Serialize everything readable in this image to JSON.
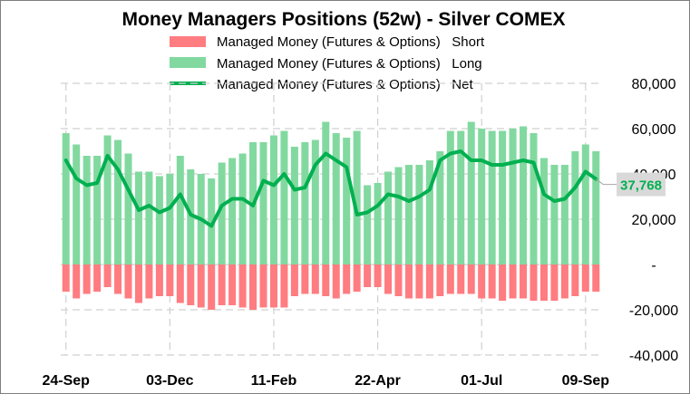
{
  "chart_data": {
    "type": "bar",
    "title": "Money Managers Positions  (52w) - Silver COMEX",
    "legend": [
      {
        "key": "short",
        "label": "Managed Money (Futures & Options)   Short",
        "color": "#ff7c80",
        "kind": "bar"
      },
      {
        "key": "long",
        "label": "Managed Money (Futures & Options)   Long",
        "color": "#82d9a0",
        "kind": "bar"
      },
      {
        "key": "net",
        "label": "Managed Money (Futures & Options)   Net",
        "color": "#00b050",
        "kind": "line"
      }
    ],
    "ylim": [
      -40000,
      80000
    ],
    "yticks": [
      -40000,
      -20000,
      0,
      20000,
      40000,
      60000,
      80000
    ],
    "ytick_labels": [
      "-40,000",
      "-20,000",
      "-",
      "20,000",
      "40,000",
      "60,000",
      "80,000"
    ],
    "x_ticks": [
      {
        "label": "24-Sep",
        "index": 0
      },
      {
        "label": "03-Dec",
        "index": 10
      },
      {
        "label": "11-Feb",
        "index": 20
      },
      {
        "label": "22-Apr",
        "index": 30
      },
      {
        "label": "01-Jul",
        "index": 40
      },
      {
        "label": "09-Sep",
        "index": 50
      }
    ],
    "last_value_label": "37,768",
    "series": [
      {
        "name": "Managed Money (Futures & Options)   Long",
        "key": "long",
        "values": [
          58000,
          53000,
          48000,
          48000,
          57000,
          55000,
          49000,
          41000,
          41000,
          39000,
          40000,
          48000,
          42000,
          40000,
          38000,
          45000,
          47000,
          49000,
          54000,
          54000,
          57000,
          59000,
          52000,
          54000,
          55000,
          63000,
          58000,
          56000,
          59000,
          35000,
          36000,
          41000,
          43000,
          44000,
          44000,
          46000,
          50000,
          59000,
          59000,
          63000,
          60000,
          59000,
          59000,
          60000,
          61000,
          58000,
          47000,
          44000,
          44000,
          50000,
          53000,
          50000
        ]
      },
      {
        "name": "Managed Money (Futures & Options)   Short",
        "key": "short",
        "values": [
          -12000,
          -15000,
          -13000,
          -12000,
          -10000,
          -13000,
          -15000,
          -17000,
          -15000,
          -14000,
          -14000,
          -17000,
          -18000,
          -19000,
          -20000,
          -18000,
          -18000,
          -19000,
          -20000,
          -19000,
          -19000,
          -19000,
          -14000,
          -13000,
          -13000,
          -14000,
          -15000,
          -13000,
          -12000,
          -10000,
          -10000,
          -13000,
          -14000,
          -15000,
          -15000,
          -15000,
          -14000,
          -13000,
          -13000,
          -13000,
          -15000,
          -15000,
          -16000,
          -15000,
          -15000,
          -16000,
          -16000,
          -16000,
          -15000,
          -14000,
          -12000,
          -12000
        ]
      },
      {
        "name": "Managed Money (Futures & Options)   Net",
        "key": "net",
        "values": [
          46000,
          38000,
          35000,
          36000,
          48000,
          42000,
          33000,
          24000,
          26000,
          23000,
          25000,
          31000,
          22000,
          20000,
          17000,
          26000,
          29000,
          29000,
          26000,
          37000,
          35000,
          40000,
          33000,
          34000,
          44000,
          49000,
          46000,
          43000,
          22000,
          23000,
          26000,
          31000,
          30000,
          28000,
          30000,
          33000,
          46000,
          49000,
          50000,
          46000,
          46000,
          44000,
          44000,
          45000,
          46000,
          45000,
          31000,
          28000,
          29000,
          34000,
          41000,
          37768
        ]
      }
    ]
  },
  "colors": {
    "short": "#ff7c80",
    "long": "#82d9a0",
    "net": "#00b050",
    "grid": "#d0d0d0",
    "last_label_bg": "#d9d9d9"
  }
}
